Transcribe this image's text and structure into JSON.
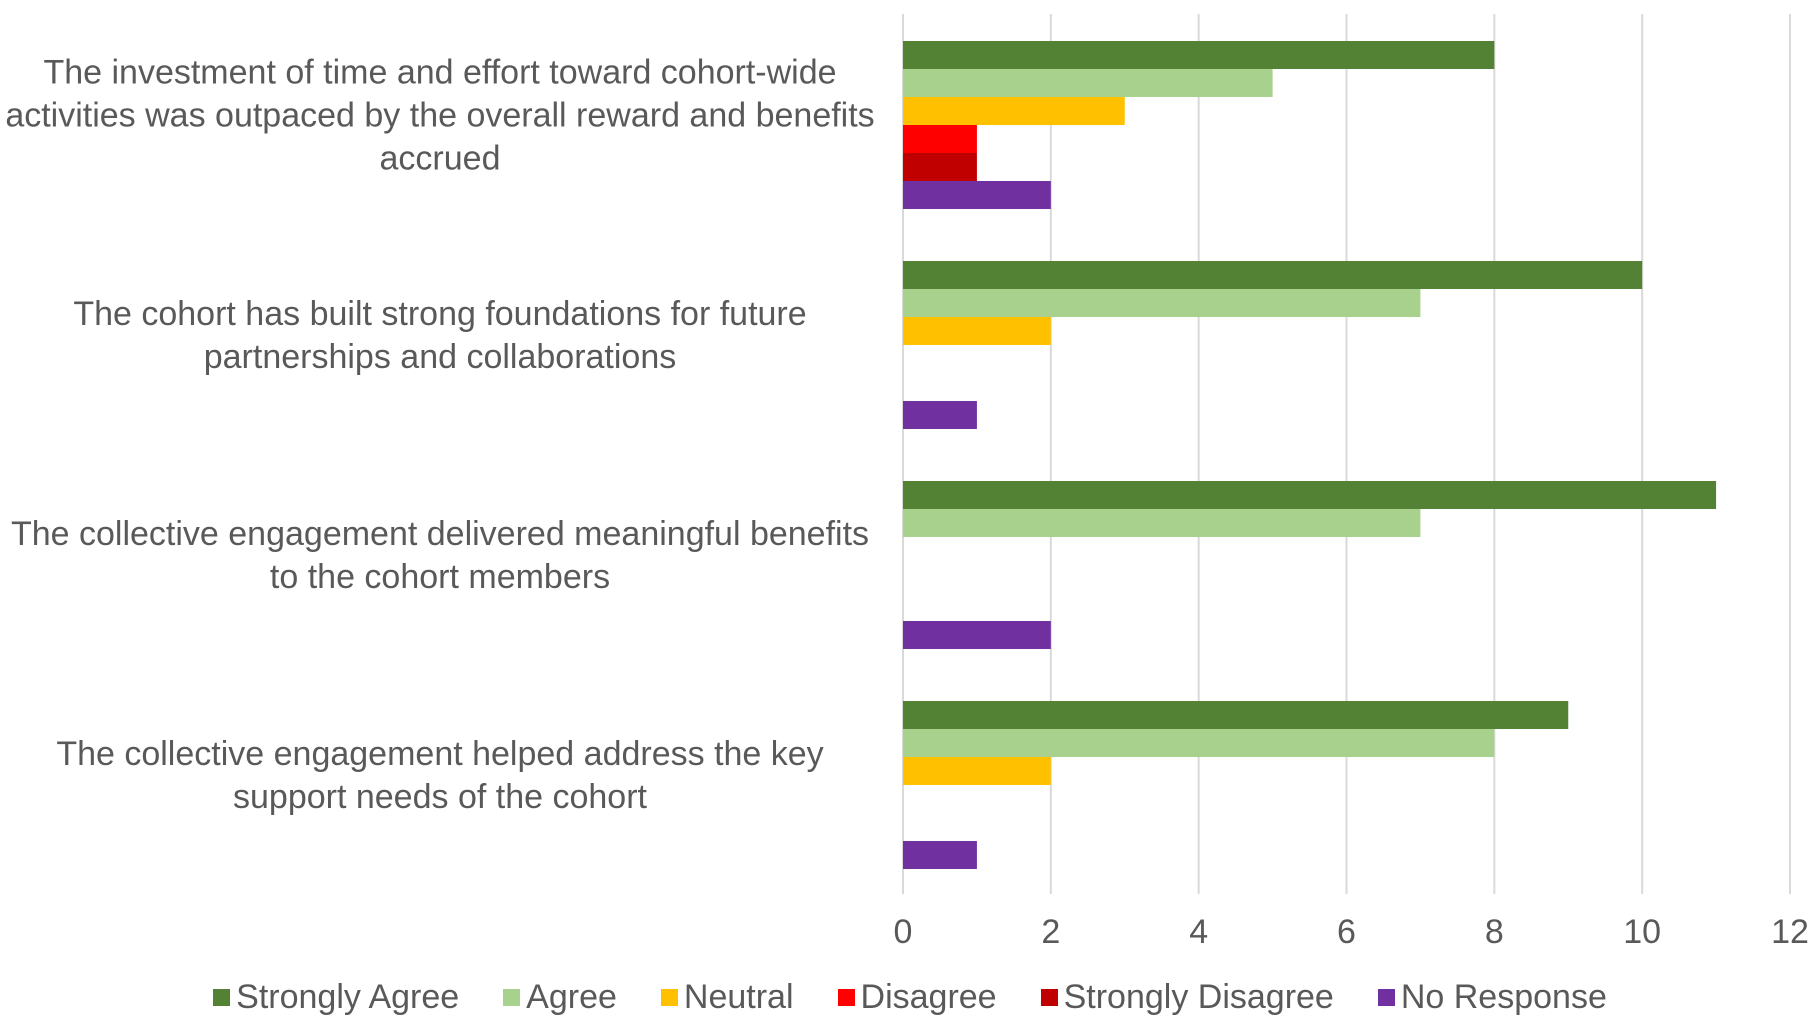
{
  "chart_data": {
    "type": "bar",
    "orientation": "horizontal",
    "categories": [
      "The investment of time and effort toward cohort-wide activities was outpaced by the overall reward and benefits accrued",
      "The cohort has built strong foundations for future partnerships and collaborations",
      "The collective engagement delivered meaningful benefits to the cohort members",
      "The collective engagement helped address the key support needs of the cohort"
    ],
    "series": [
      {
        "name": "Strongly Agree",
        "color": "#548235",
        "values": [
          8,
          10,
          11,
          9
        ]
      },
      {
        "name": "Agree",
        "color": "#a9d18e",
        "values": [
          5,
          7,
          7,
          8
        ]
      },
      {
        "name": "Neutral",
        "color": "#ffc000",
        "values": [
          3,
          2,
          0,
          2
        ]
      },
      {
        "name": "Disagree",
        "color": "#ff0000",
        "values": [
          1,
          0,
          0,
          0
        ]
      },
      {
        "name": "Strongly Disagree",
        "color": "#c00000",
        "values": [
          1,
          0,
          0,
          0
        ]
      },
      {
        "name": "No Response",
        "color": "#7030a0",
        "values": [
          2,
          1,
          2,
          1
        ]
      }
    ],
    "xlim": [
      0,
      12
    ],
    "xticks": [
      0,
      2,
      4,
      6,
      8,
      10,
      12
    ],
    "grid": true,
    "legend": "bottom"
  }
}
